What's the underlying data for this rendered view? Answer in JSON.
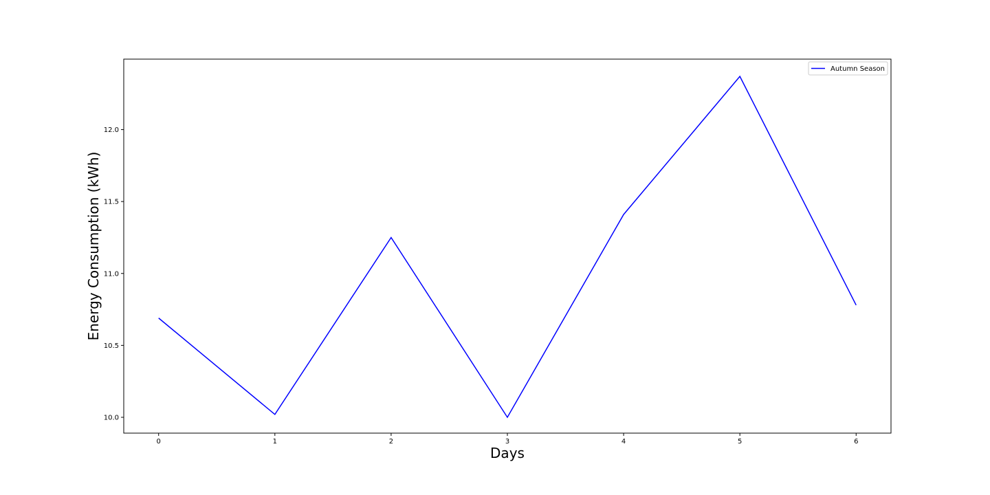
{
  "chart_data": {
    "type": "line",
    "title": "",
    "xlabel": "Days",
    "ylabel": "Energy Consumption (kWh)",
    "x": [
      0,
      1,
      2,
      3,
      4,
      5,
      6
    ],
    "xlim": [
      -0.3,
      6.3
    ],
    "ylim": [
      9.89,
      12.49
    ],
    "x_ticks": [
      "0",
      "1",
      "2",
      "3",
      "4",
      "5",
      "6"
    ],
    "y_ticks": [
      "10.0",
      "10.5",
      "11.0",
      "11.5",
      "12.0"
    ],
    "grid": false,
    "legend_position": "top-right",
    "series": [
      {
        "name": "Autumn Season",
        "color": "#0000ff",
        "values": [
          10.69,
          10.02,
          11.25,
          10.0,
          11.41,
          12.37,
          10.78
        ]
      }
    ]
  }
}
